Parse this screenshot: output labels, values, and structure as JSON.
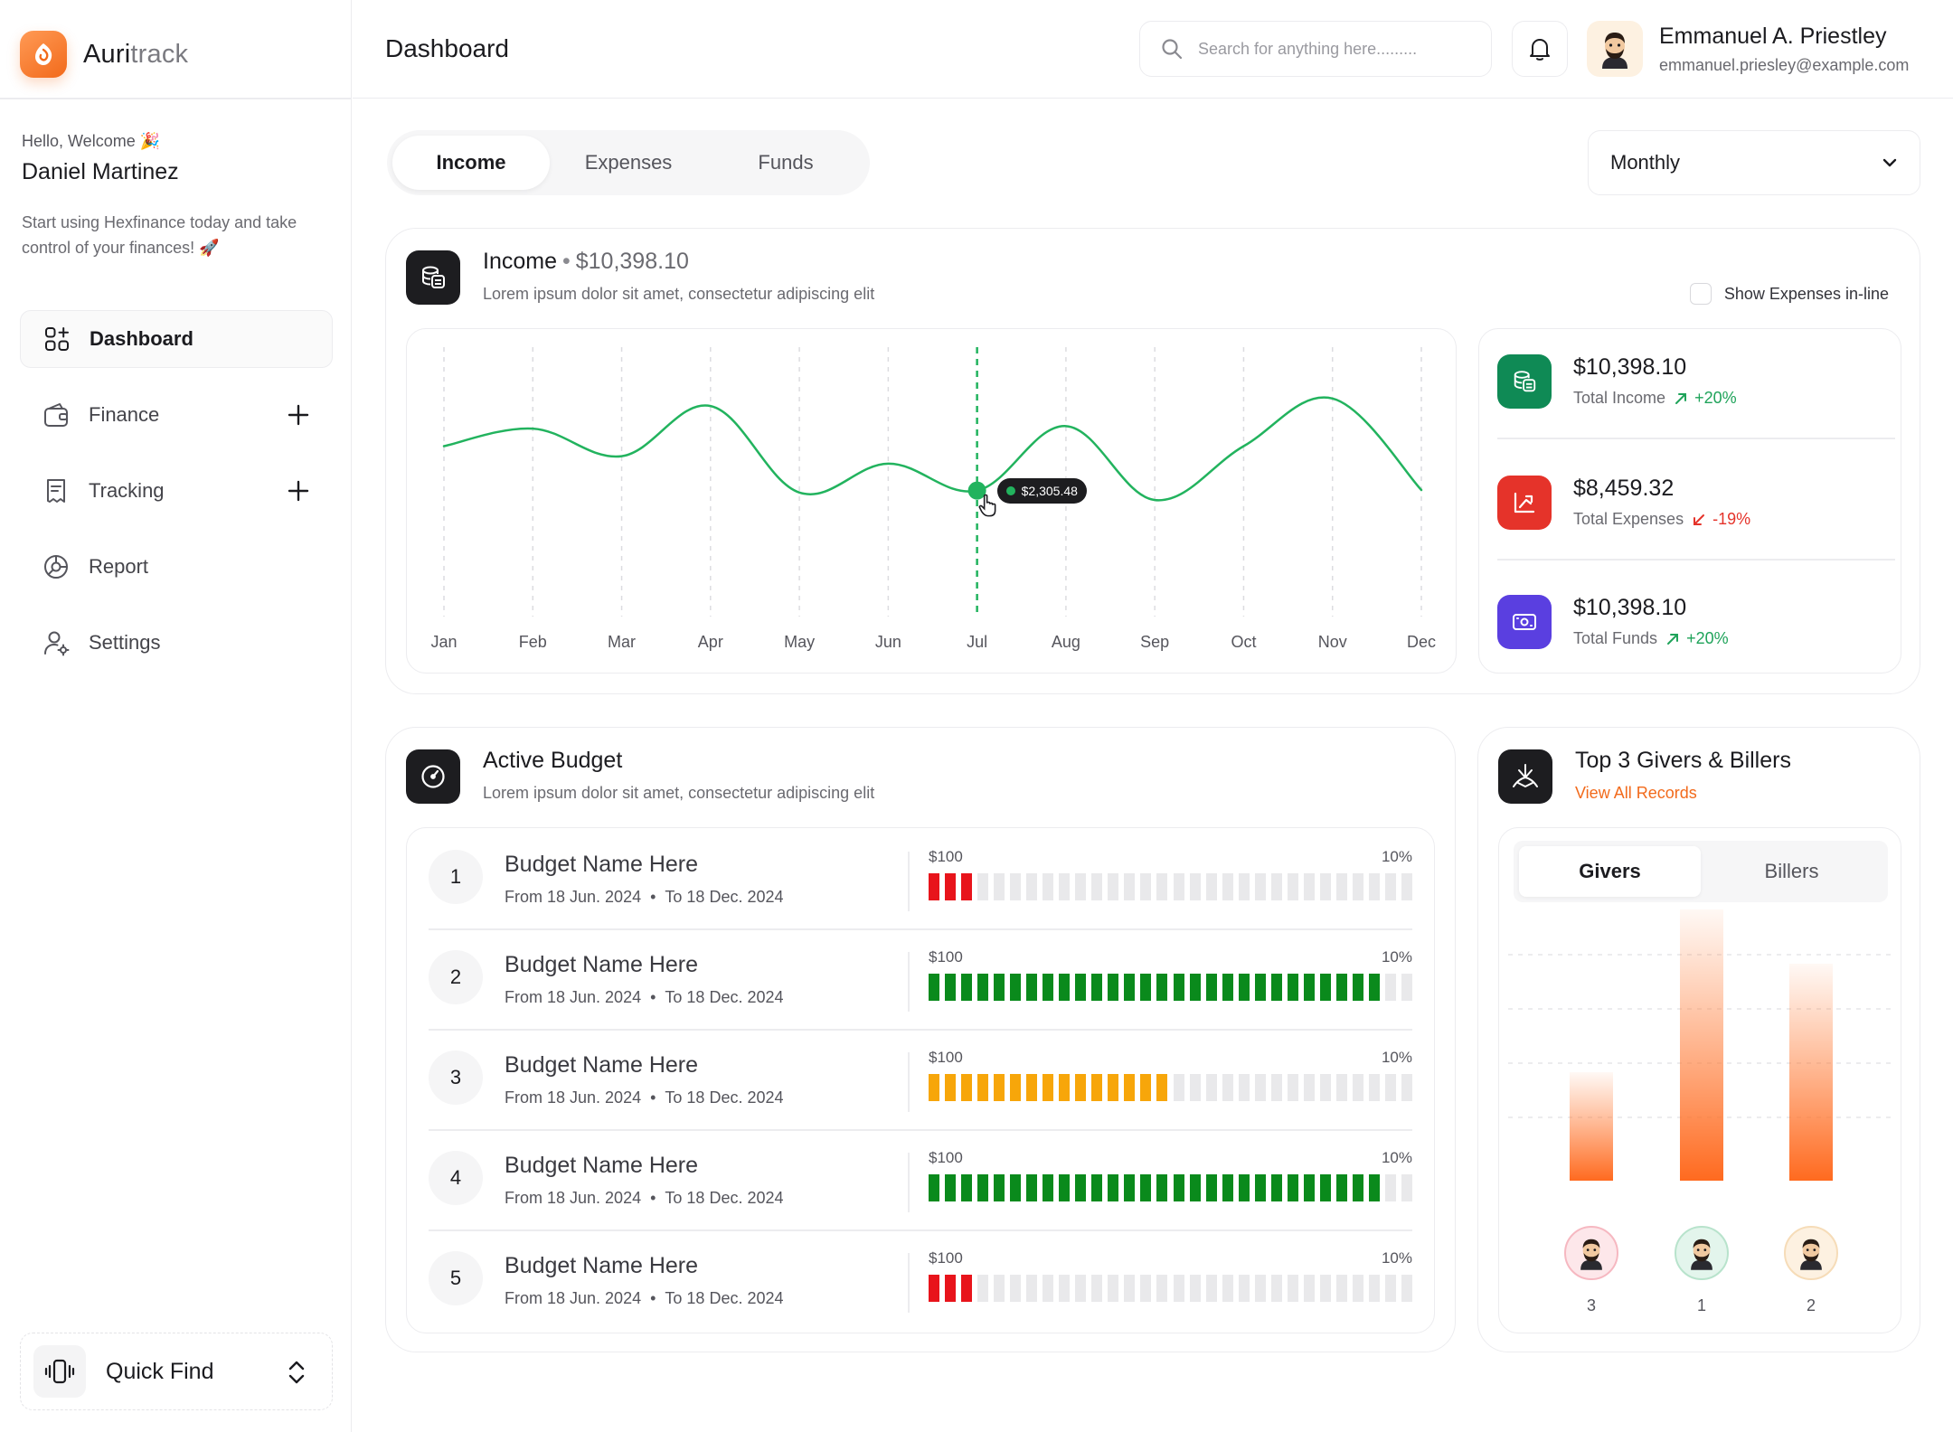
{
  "brand": {
    "name_part1": "Auri",
    "name_part2": "track"
  },
  "sidebar": {
    "greeting": "Hello, Welcome 🎉",
    "user_name": "Daniel Martinez",
    "promo": "Start using Hexfinance today and take control of your finances! 🚀",
    "items": [
      {
        "label": "Dashboard",
        "icon": "dashboard-icon",
        "active": true
      },
      {
        "label": "Finance",
        "icon": "wallet-icon",
        "expandable": true
      },
      {
        "label": "Tracking",
        "icon": "receipt-icon",
        "expandable": true
      },
      {
        "label": "Report",
        "icon": "chart-pie-icon"
      },
      {
        "label": "Settings",
        "icon": "user-settings-icon"
      }
    ],
    "quick_find": "Quick Find"
  },
  "header": {
    "title": "Dashboard",
    "search_placeholder": "Search for anything here.........",
    "user_name": "Emmanuel A. Priestley",
    "user_email": "emmanuel.priesley@example.com"
  },
  "tabs": [
    "Income",
    "Expenses",
    "Funds"
  ],
  "active_tab": "Income",
  "period": "Monthly",
  "income_card": {
    "title": "Income",
    "amount": "$10,398.10",
    "subtitle": "Lorem ipsum dolor sit amet, consectetur adipiscing elit",
    "show_expenses_label": "Show Expenses in-line"
  },
  "chart_data": {
    "type": "line",
    "categories": [
      "Jan",
      "Feb",
      "Mar",
      "Apr",
      "May",
      "Jun",
      "Jul",
      "Aug",
      "Sep",
      "Oct",
      "Nov",
      "Dec"
    ],
    "values": [
      2660,
      2800,
      2580,
      2980,
      2290,
      2520,
      2305.48,
      2820,
      2230,
      2660,
      3040,
      2310
    ],
    "highlight_index": 6,
    "highlight_label": "$2,305.48",
    "ylim": [
      1300,
      3450
    ],
    "grid_x": true,
    "line_color": "#22b35e"
  },
  "stats": [
    {
      "value": "$10,398.10",
      "label": "Total Income",
      "change": "+20%",
      "trend": "up",
      "color": "#0f8a55",
      "change_color": "#1fa35a",
      "icon": "coins-icon"
    },
    {
      "value": "$8,459.32",
      "label": "Total Expenses",
      "change": "-19%",
      "trend": "down",
      "color": "#e5332a",
      "change_color": "#e5332a",
      "icon": "trend-down-icon"
    },
    {
      "value": "$10,398.10",
      "label": "Total Funds",
      "change": "+20%",
      "trend": "up",
      "color": "#5a3fe0",
      "change_color": "#1fa35a",
      "icon": "money-icon"
    }
  ],
  "budget": {
    "title": "Active Budget",
    "subtitle": "Lorem ipsum dolor sit amet, consectetur adipiscing elit",
    "rows": [
      {
        "num": "1",
        "name": "Budget Name Here",
        "from": "From 18 Jun. 2024",
        "to": "To 18 Dec. 2024",
        "amount": "$100",
        "percent": "10%",
        "filled": 3,
        "total": 30,
        "color": "#e8141b"
      },
      {
        "num": "2",
        "name": "Budget Name Here",
        "from": "From 18 Jun. 2024",
        "to": "To 18 Dec. 2024",
        "amount": "$100",
        "percent": "10%",
        "filled": 28,
        "total": 30,
        "color": "#0a8a1c"
      },
      {
        "num": "3",
        "name": "Budget Name Here",
        "from": "From 18 Jun. 2024",
        "to": "To 18 Dec. 2024",
        "amount": "$100",
        "percent": "10%",
        "filled": 15,
        "total": 30,
        "color": "#f7a60a"
      },
      {
        "num": "4",
        "name": "Budget Name Here",
        "from": "From 18 Jun. 2024",
        "to": "To 18 Dec. 2024",
        "amount": "$100",
        "percent": "10%",
        "filled": 28,
        "total": 30,
        "color": "#0a8a1c"
      },
      {
        "num": "5",
        "name": "Budget Name Here",
        "from": "From 18 Jun. 2024",
        "to": "To 18 Dec. 2024",
        "amount": "$100",
        "percent": "10%",
        "filled": 3,
        "total": 30,
        "color": "#e8141b"
      }
    ]
  },
  "givers": {
    "title": "Top 3 Givers & Billers",
    "link": "View All Records",
    "tabs": [
      "Givers",
      "Billers"
    ],
    "active_tab": "Givers",
    "bars": [
      {
        "rank": "3",
        "value": 0.4,
        "avatar_bg": "#fde7ea",
        "avatar_ring": "#f6b8c1"
      },
      {
        "rank": "1",
        "value": 1.0,
        "avatar_bg": "#e3f5ec",
        "avatar_ring": "#b8e3cc"
      },
      {
        "rank": "2",
        "value": 0.8,
        "avatar_bg": "#fdf1e1",
        "avatar_ring": "#f6dcb8"
      }
    ]
  }
}
